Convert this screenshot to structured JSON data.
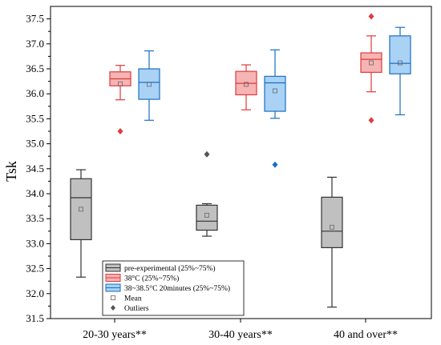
{
  "chart_data": {
    "type": "box",
    "title": "",
    "xlabel": "",
    "ylabel": "Tsk",
    "ylim": [
      31.5,
      37.75
    ],
    "yticks": [
      "31.5",
      "32.0",
      "32.5",
      "33.0",
      "33.5",
      "34.0",
      "34.5",
      "35.0",
      "35.5",
      "36.0",
      "36.5",
      "37.0",
      "37.5"
    ],
    "categories": [
      "20-30 years**",
      "30-40 years**",
      "40 and over**"
    ],
    "legend_position": "bottom-left",
    "series": [
      {
        "name": "pre-experimental (25%~75%)",
        "fill": "#c0c0c0",
        "stroke": "#333333",
        "outlier_color": "#555555",
        "boxes": [
          {
            "q1": 33.08,
            "median": 33.92,
            "q3": 34.3,
            "whisker_low": 32.33,
            "whisker_high": 34.48,
            "mean": 33.69,
            "outliers": []
          },
          {
            "q1": 33.27,
            "median": 33.45,
            "q3": 33.77,
            "whisker_low": 33.15,
            "whisker_high": 33.8,
            "mean": 33.57,
            "outliers": [
              34.79
            ]
          },
          {
            "q1": 32.92,
            "median": 33.25,
            "q3": 33.93,
            "whisker_low": 31.73,
            "whisker_high": 34.33,
            "mean": 33.33,
            "outliers": []
          }
        ]
      },
      {
        "name": "38°C (25%~75%)",
        "fill": "#f6b4b4",
        "stroke": "#e03a3a",
        "outlier_color": "#e03a3a",
        "boxes": [
          {
            "q1": 36.16,
            "median": 36.3,
            "q3": 36.44,
            "whisker_low": 35.88,
            "whisker_high": 36.57,
            "mean": 36.2,
            "outliers": [
              35.25
            ]
          },
          {
            "q1": 35.98,
            "median": 36.21,
            "q3": 36.45,
            "whisker_low": 35.68,
            "whisker_high": 36.58,
            "mean": 36.19,
            "outliers": []
          },
          {
            "q1": 36.43,
            "median": 36.69,
            "q3": 36.82,
            "whisker_low": 36.04,
            "whisker_high": 37.16,
            "mean": 36.62,
            "outliers": [
              37.55,
              35.47
            ]
          }
        ]
      },
      {
        "name": "38~38.5°C 20minutes (25%~75%)",
        "fill": "#a9d2f5",
        "stroke": "#1a6fc4",
        "outlier_color": "#1a6fc4",
        "boxes": [
          {
            "q1": 35.89,
            "median": 36.23,
            "q3": 36.5,
            "whisker_low": 35.47,
            "whisker_high": 36.86,
            "mean": 36.19,
            "outliers": []
          },
          {
            "q1": 35.65,
            "median": 36.22,
            "q3": 36.35,
            "whisker_low": 35.51,
            "whisker_high": 36.88,
            "mean": 36.06,
            "outliers": [
              34.58
            ]
          },
          {
            "q1": 36.4,
            "median": 36.61,
            "q3": 37.16,
            "whisker_low": 35.58,
            "whisker_high": 37.33,
            "mean": 36.62,
            "outliers": []
          }
        ]
      }
    ],
    "legend_extra": [
      {
        "name": "Mean",
        "kind": "mean"
      },
      {
        "name": "Outliers",
        "kind": "outlier"
      }
    ]
  }
}
